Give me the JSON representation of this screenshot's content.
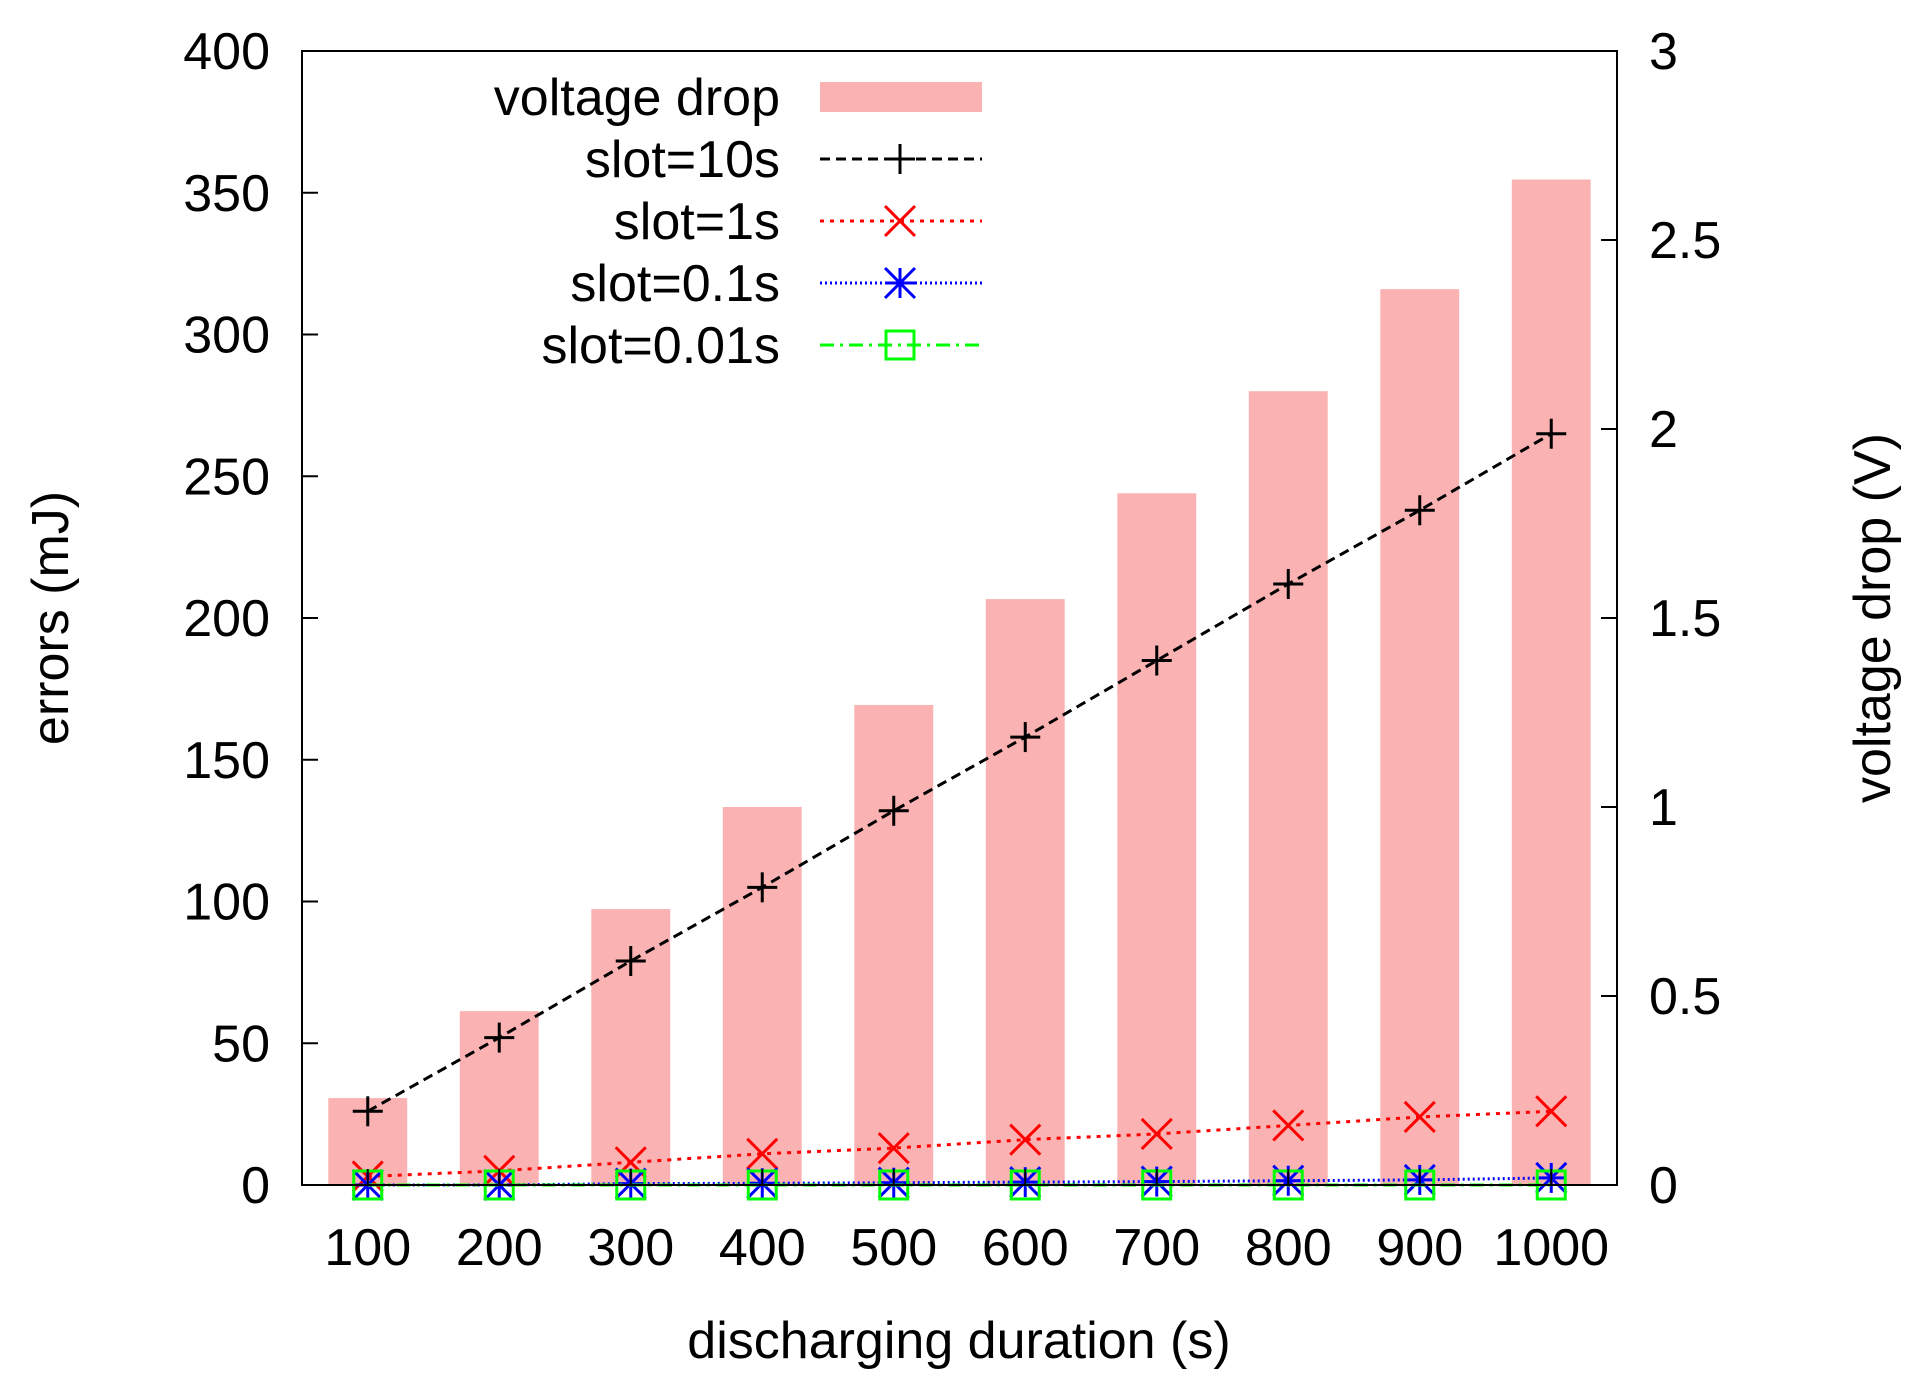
{
  "chart_data": {
    "type": "bar",
    "xlabel": "discharging duration (s)",
    "ylabel": "errors (mJ)",
    "y2label": "voltage drop (V)",
    "categories": [
      "100",
      "200",
      "300",
      "400",
      "500",
      "600",
      "700",
      "800",
      "900",
      "1000"
    ],
    "ylim": [
      0,
      400
    ],
    "yticks": [
      "0",
      "50",
      "100",
      "150",
      "200",
      "250",
      "300",
      "350",
      "400"
    ],
    "y2lim": [
      0,
      3
    ],
    "y2ticks": [
      "0",
      "0.5",
      "1",
      "1.5",
      "2",
      "2.5",
      "3"
    ],
    "grid": false,
    "legend_position": "top-left",
    "bars": {
      "name": "voltage drop",
      "axis": "right",
      "color": "#fbb2b2",
      "values": [
        0.23,
        0.46,
        0.73,
        1.0,
        1.27,
        1.55,
        1.83,
        2.1,
        2.37,
        2.66
      ]
    },
    "series": [
      {
        "name": "slot=10s",
        "marker": "plus",
        "dash": "dashed",
        "color": "#000000",
        "values": [
          26,
          52,
          79,
          105,
          132,
          158,
          185,
          212,
          238,
          265
        ]
      },
      {
        "name": "slot=1s",
        "marker": "cross",
        "dash": "dotted",
        "color": "#ff0000",
        "values": [
          3,
          5,
          8,
          11,
          13,
          16,
          18,
          21,
          24,
          26
        ]
      },
      {
        "name": "slot=0.1s",
        "marker": "star",
        "dash": "fine-dotted",
        "color": "#0000ff",
        "values": [
          0,
          0,
          0.5,
          0.6,
          0.8,
          1,
          1.2,
          1.5,
          1.8,
          2.5
        ]
      },
      {
        "name": "slot=0.01s",
        "marker": "square",
        "dash": "dash-dot",
        "color": "#00ff00",
        "values": [
          0,
          0,
          0,
          0,
          0,
          0,
          0,
          0,
          0,
          0
        ]
      }
    ]
  }
}
